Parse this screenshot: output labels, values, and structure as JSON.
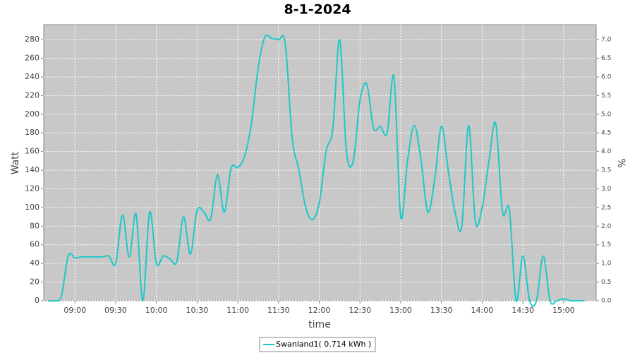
{
  "chart_data": {
    "type": "line",
    "title": "8-1-2024",
    "xlabel": "time",
    "ylabel": "Watt",
    "y2label": "%",
    "x": [
      "08:40",
      "08:45",
      "08:50",
      "08:55",
      "09:00",
      "09:05",
      "09:10",
      "09:15",
      "09:20",
      "09:25",
      "09:30",
      "09:35",
      "09:40",
      "09:45",
      "09:50",
      "09:55",
      "10:00",
      "10:05",
      "10:10",
      "10:15",
      "10:20",
      "10:25",
      "10:30",
      "10:35",
      "10:40",
      "10:45",
      "10:50",
      "10:55",
      "11:00",
      "11:05",
      "11:10",
      "11:15",
      "11:20",
      "11:25",
      "11:30",
      "11:35",
      "11:40",
      "11:45",
      "11:50",
      "11:55",
      "12:00",
      "12:05",
      "12:10",
      "12:15",
      "12:20",
      "12:25",
      "12:30",
      "12:35",
      "12:40",
      "12:45",
      "12:50",
      "12:55",
      "13:00",
      "13:05",
      "13:10",
      "13:15",
      "13:20",
      "13:25",
      "13:30",
      "13:35",
      "13:40",
      "13:45",
      "13:50",
      "13:55",
      "14:00",
      "14:05",
      "14:10",
      "14:15",
      "14:20",
      "14:25",
      "14:30",
      "14:35",
      "14:40",
      "14:45",
      "14:50",
      "14:55",
      "15:00",
      "15:05",
      "15:10",
      "15:15"
    ],
    "series": [
      {
        "name": "Swanland1( 0.714 kWh )",
        "color": "#1ec8c8",
        "values": [
          0,
          0,
          5,
          48,
          46,
          47,
          47,
          47,
          47,
          48,
          40,
          92,
          47,
          93,
          0,
          95,
          40,
          48,
          45,
          42,
          90,
          50,
          97,
          95,
          88,
          135,
          95,
          142,
          143,
          155,
          190,
          250,
          283,
          281,
          280,
          275,
          175,
          140,
          100,
          87,
          105,
          160,
          185,
          280,
          160,
          150,
          215,
          232,
          185,
          187,
          180,
          240,
          90,
          150,
          188,
          150,
          95,
          130,
          187,
          140,
          95,
          80,
          188,
          85,
          100,
          150,
          190,
          95,
          98,
          0,
          48,
          0,
          0,
          48,
          0,
          0,
          2,
          0,
          0,
          0
        ]
      }
    ],
    "xlim": [
      "08:37",
      "15:24"
    ],
    "xticks": [
      "09:00",
      "09:30",
      "10:00",
      "10:30",
      "11:00",
      "11:30",
      "12:00",
      "12:30",
      "13:00",
      "13:30",
      "14:00",
      "14:30",
      "15:00"
    ],
    "ylim": [
      0,
      296
    ],
    "yticks": [
      0,
      20,
      40,
      60,
      80,
      100,
      120,
      140,
      160,
      180,
      200,
      220,
      240,
      260,
      280
    ],
    "y2lim": [
      0,
      7.4
    ],
    "y2ticks": [
      {
        "value": 0,
        "label": "0.0"
      },
      0.5,
      {
        "value": 1,
        "label": "1.0"
      },
      1.5,
      {
        "value": 2,
        "label": "2.0"
      },
      2.5,
      {
        "value": 3,
        "label": "3.0"
      },
      3.5,
      {
        "value": 4,
        "label": "4.0"
      },
      4.5,
      {
        "value": 5,
        "label": "5.0"
      },
      5.5,
      {
        "value": 6,
        "label": "6.0"
      },
      6.5,
      {
        "value": 7,
        "label": "7.0"
      }
    ],
    "grid": true,
    "legend": "bottom"
  }
}
